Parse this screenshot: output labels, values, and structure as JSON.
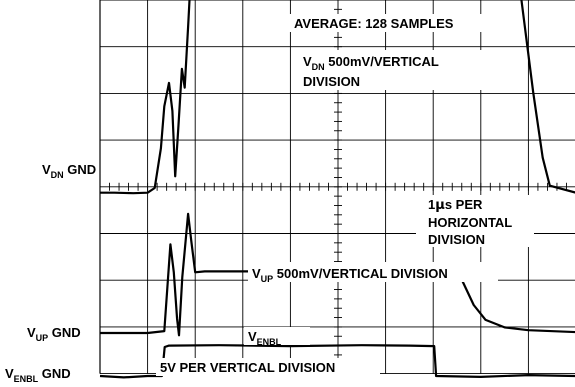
{
  "chart_data": {
    "type": "line",
    "annotations": {
      "average": "AVERAGE: 128 SAMPLES",
      "vdn_scale_a": "V",
      "vdn_scale_sub": "DN",
      "vdn_scale_b": " 500mV/VERTICAL",
      "vdn_scale_c": "DIVISION",
      "timebase_a": "1",
      "timebase_mu": "μ",
      "timebase_b": "s PER",
      "timebase_c": "HORIZONTAL",
      "timebase_d": "DIVISION",
      "vup_scale_a": "V",
      "vup_scale_sub": "UP",
      "vup_scale_b": " 500mV/VERTICAL DIVISION",
      "venbl_a": "V",
      "venbl_sub": "ENBL",
      "venbl_scale": "5V PER VERTICAL DIVISION"
    },
    "ground_labels": [
      {
        "main": "V",
        "sub": "DN",
        "rest": " GND"
      },
      {
        "main": "V",
        "sub": "UP",
        "rest": " GND"
      },
      {
        "main": "V",
        "sub": "ENBL",
        "rest": " GND"
      }
    ],
    "grid": {
      "horizontal_divisions": 10,
      "vertical_divisions": 8,
      "minor_ticks_per_division": 5
    },
    "x_unit": "μs",
    "x_range": [
      0,
      10
    ],
    "series": [
      {
        "points": [
          [
            0,
            -0.55
          ],
          [
            0.3,
            -0.55
          ],
          [
            0.7,
            -0.56
          ],
          [
            1.0,
            -0.55
          ],
          [
            1.15,
            -0.45
          ],
          [
            1.28,
            0.4
          ],
          [
            1.35,
            1.3
          ],
          [
            1.45,
            1.8
          ],
          [
            1.52,
            1.2
          ],
          [
            1.58,
            -0.2
          ],
          [
            1.65,
            0.9
          ],
          [
            1.72,
            2.1
          ],
          [
            1.78,
            1.7
          ],
          [
            1.85,
            3.0
          ],
          [
            1.92,
            4.35
          ],
          [
            2.05,
            4.55
          ],
          [
            2.2,
            4.58
          ],
          [
            3.0,
            4.6
          ],
          [
            5.0,
            4.6
          ],
          [
            7.0,
            4.6
          ],
          [
            7.5,
            4.6
          ],
          [
            7.58,
            4.45
          ],
          [
            7.65,
            4.9
          ],
          [
            7.8,
            5.45
          ],
          [
            8.0,
            5.75
          ],
          [
            8.15,
            5.9
          ],
          [
            8.35,
            5.78
          ],
          [
            8.6,
            5.1
          ],
          [
            8.85,
            3.6
          ],
          [
            9.1,
            1.6
          ],
          [
            9.3,
            0.2
          ],
          [
            9.45,
            -0.4
          ],
          [
            10.0,
            -0.55
          ]
        ]
      },
      {
        "points": [
          [
            0,
            0
          ],
          [
            0.3,
            0
          ],
          [
            0.7,
            0
          ],
          [
            1.0,
            0
          ],
          [
            1.35,
            0.04
          ],
          [
            1.48,
            1.9
          ],
          [
            1.55,
            1.3
          ],
          [
            1.62,
            0.3
          ],
          [
            1.66,
            -0.05
          ],
          [
            1.73,
            1.2
          ],
          [
            1.85,
            2.55
          ],
          [
            1.92,
            1.95
          ],
          [
            2.0,
            1.3
          ],
          [
            2.2,
            1.32
          ],
          [
            3.0,
            1.32
          ],
          [
            5.0,
            1.32
          ],
          [
            7.0,
            1.32
          ],
          [
            7.5,
            1.32
          ],
          [
            7.62,
            1.1
          ],
          [
            7.85,
            0.6
          ],
          [
            8.1,
            0.28
          ],
          [
            8.5,
            0.12
          ],
          [
            9.0,
            0.06
          ],
          [
            10.0,
            0.02
          ]
        ]
      },
      {
        "points": [
          [
            0,
            0
          ],
          [
            0.5,
            -0.03
          ],
          [
            1.0,
            0
          ],
          [
            1.3,
            0
          ],
          [
            1.36,
            0.62
          ],
          [
            1.45,
            0.65
          ],
          [
            2.5,
            0.66
          ],
          [
            4.0,
            0.64
          ],
          [
            5.5,
            0.66
          ],
          [
            6.5,
            0.65
          ],
          [
            7.02,
            0.64
          ],
          [
            7.06,
            0
          ],
          [
            8.0,
            -0.02
          ],
          [
            9.0,
            0.02
          ],
          [
            10.0,
            0
          ]
        ]
      }
    ]
  }
}
